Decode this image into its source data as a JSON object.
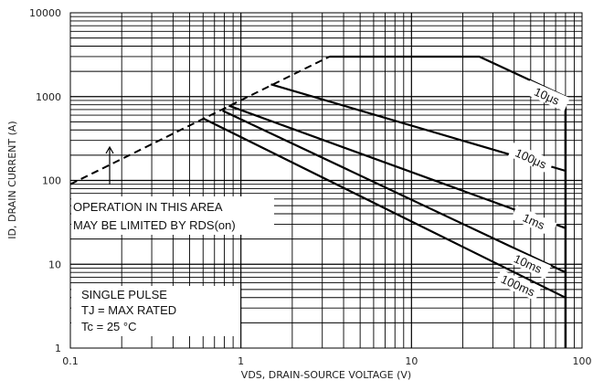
{
  "chart_data": {
    "type": "line",
    "title": "",
    "xlabel": "VDS, DRAIN-SOURCE VOLTAGE (V)",
    "ylabel": "ID, DRAIN CURRENT (A)",
    "x_scale": "log",
    "y_scale": "log",
    "xlim": [
      0.1,
      100
    ],
    "ylim": [
      1,
      10000
    ],
    "x_ticks": [
      "0.1",
      "1",
      "10",
      "100"
    ],
    "y_ticks": [
      "1",
      "10",
      "100",
      "1000",
      "10000"
    ],
    "grid": true,
    "colors": {
      "line": "#000000",
      "grid": "#000000",
      "background": "#ffffff"
    },
    "series": [
      {
        "name": "10μs",
        "label_at": [
          62,
          1000
        ],
        "points": [
          [
            3.3,
            3000
          ],
          [
            25,
            3000
          ],
          [
            80,
            1000
          ]
        ]
      },
      {
        "name": "100μs",
        "label_at": [
          50,
          180
        ],
        "points": [
          [
            1.5,
            1400
          ],
          [
            80,
            130
          ]
        ]
      },
      {
        "name": "1ms",
        "label_at": [
          52,
          32
        ],
        "points": [
          [
            0.85,
            780
          ],
          [
            80,
            27
          ]
        ]
      },
      {
        "name": "10ms",
        "label_at": [
          48,
          10
        ],
        "points": [
          [
            0.78,
            680
          ],
          [
            80,
            8
          ]
        ]
      },
      {
        "name": "100ms",
        "label_at": [
          42,
          5.5
        ],
        "points": [
          [
            0.6,
            550
          ],
          [
            80,
            4
          ]
        ]
      }
    ],
    "limit_line": {
      "points": [
        [
          0.1,
          90
        ],
        [
          3.3,
          3000
        ]
      ],
      "style": "dashed"
    },
    "vertical_limit": {
      "x": 80,
      "ylim": [
        1,
        1000
      ]
    },
    "arrow": {
      "x": 0.17,
      "from": 90,
      "to": 250
    },
    "annotations": [
      {
        "lines": [
          "OPERATION IN THIS AREA",
          "MAY BE LIMITED BY RDS(on)"
        ]
      },
      {
        "lines": [
          "SINGLE PULSE",
          "TJ = MAX RATED",
          "Tc = 25 °C"
        ]
      }
    ]
  }
}
